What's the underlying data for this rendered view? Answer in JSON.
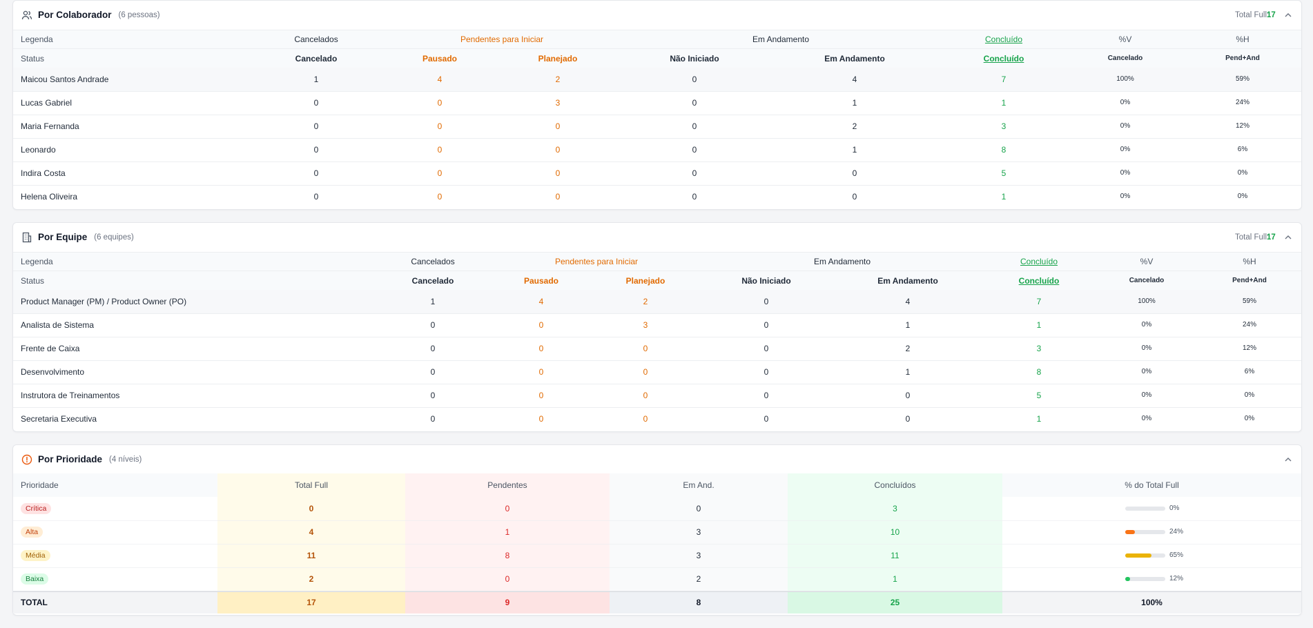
{
  "collaborator": {
    "title": "Por Colaborador",
    "count": "(6 pessoas)",
    "total_label": "Total Full:",
    "total": 17,
    "legend": [
      "Legenda",
      "Cancelados",
      "Pendentes para Iniciar",
      "Em Andamento",
      "Concluído",
      "%V",
      "%H"
    ],
    "status": [
      "Status",
      "Cancelado",
      "Pausado",
      "Planejado",
      "Não Iniciado",
      "Em Andamento",
      "Concluído",
      "Cancelado",
      "Pend+And"
    ],
    "rows": [
      [
        "Maicou Santos Andrade",
        1,
        4,
        2,
        0,
        4,
        7,
        "100%",
        "59%"
      ],
      [
        "Lucas Gabriel",
        0,
        0,
        3,
        0,
        1,
        1,
        "0%",
        "24%"
      ],
      [
        "Maria Fernanda",
        0,
        0,
        0,
        0,
        2,
        3,
        "0%",
        "12%"
      ],
      [
        "Leonardo",
        0,
        0,
        0,
        0,
        1,
        8,
        "0%",
        "6%"
      ],
      [
        "Indira Costa",
        0,
        0,
        0,
        0,
        0,
        5,
        "0%",
        "0%"
      ],
      [
        "Helena Oliveira",
        0,
        0,
        0,
        0,
        0,
        1,
        "0%",
        "0%"
      ]
    ]
  },
  "team": {
    "title": "Por Equipe",
    "count": "(6 equipes)",
    "total_label": "Total Full:",
    "total": 17,
    "legend": [
      "Legenda",
      "Cancelados",
      "Pendentes para Iniciar",
      "Em Andamento",
      "Concluído",
      "%V",
      "%H"
    ],
    "status": [
      "Status",
      "Cancelado",
      "Pausado",
      "Planejado",
      "Não Iniciado",
      "Em Andamento",
      "Concluído",
      "Cancelado",
      "Pend+And"
    ],
    "rows": [
      [
        "Product Manager (PM) / Product Owner (PO)",
        1,
        4,
        2,
        0,
        4,
        7,
        "100%",
        "59%"
      ],
      [
        "Analista de Sistema",
        0,
        0,
        3,
        0,
        1,
        1,
        "0%",
        "24%"
      ],
      [
        "Frente de Caixa",
        0,
        0,
        0,
        0,
        2,
        3,
        "0%",
        "12%"
      ],
      [
        "Desenvolvimento",
        0,
        0,
        0,
        0,
        1,
        8,
        "0%",
        "6%"
      ],
      [
        "Instrutora de Treinamentos",
        0,
        0,
        0,
        0,
        0,
        5,
        "0%",
        "0%"
      ],
      [
        "Secretaria Executiva",
        0,
        0,
        0,
        0,
        0,
        1,
        "0%",
        "0%"
      ]
    ]
  },
  "priority": {
    "title": "Por Prioridade",
    "count": "(4 níveis)",
    "columns": [
      "Prioridade",
      "Total Full",
      "Pendentes",
      "Em And.",
      "Concluídos",
      "% do Total Full"
    ],
    "rows": [
      {
        "label": "Crítica",
        "total": 0,
        "pending": 0,
        "in_progress": 0,
        "done": 3,
        "share": {
          "value": 0,
          "label": "0%"
        },
        "color": "#ef4444"
      },
      {
        "label": "Alta",
        "total": 4,
        "pending": 1,
        "in_progress": 3,
        "done": 10,
        "share": {
          "value": 24,
          "label": "24%"
        },
        "color": "#f97316"
      },
      {
        "label": "Média",
        "total": 11,
        "pending": 8,
        "in_progress": 3,
        "done": 11,
        "share": {
          "value": 65,
          "label": "65%"
        },
        "color": "#eab308"
      },
      {
        "label": "Baixa",
        "total": 2,
        "pending": 0,
        "in_progress": 2,
        "done": 1,
        "share": {
          "value": 12,
          "label": "12%"
        },
        "color": "#22c55e"
      }
    ],
    "total": {
      "label": "TOTAL",
      "total": 17,
      "pending": 9,
      "in_progress": 8,
      "done": 25,
      "share": "100%"
    }
  }
}
